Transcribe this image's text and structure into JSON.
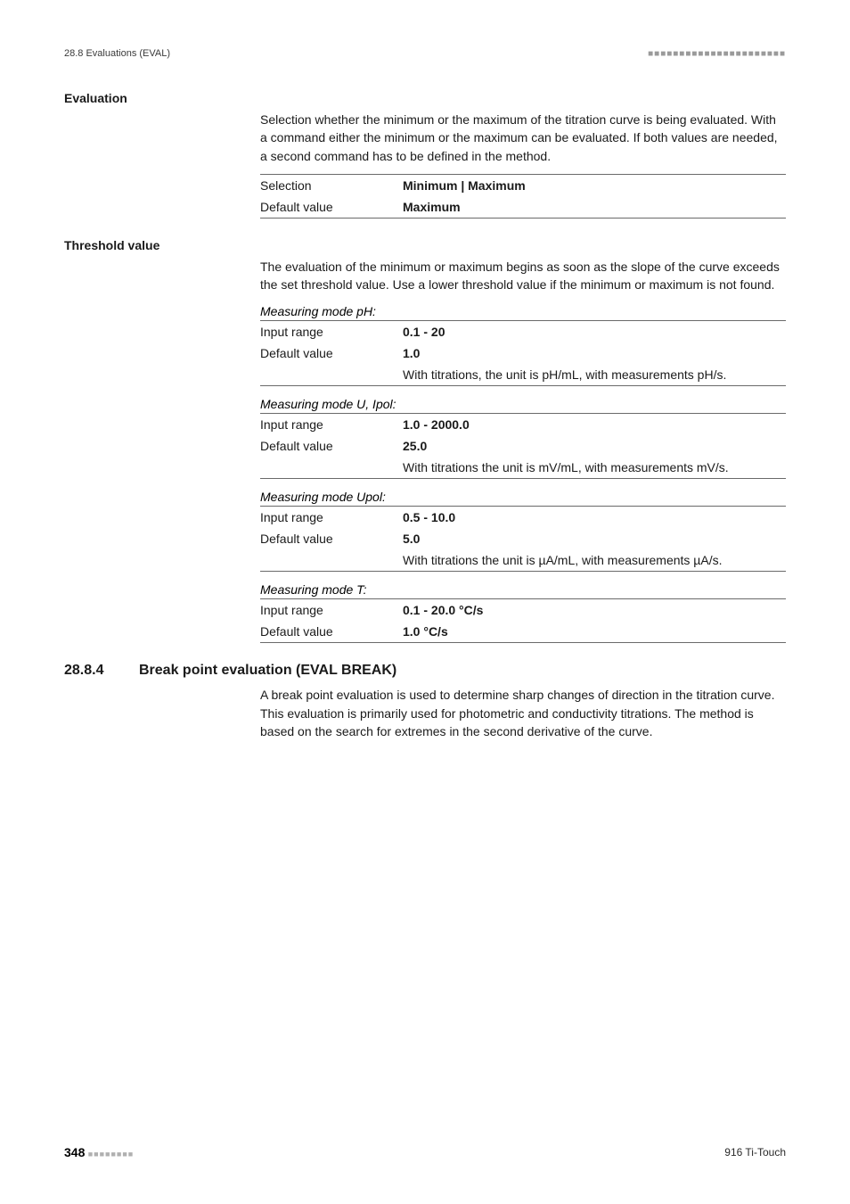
{
  "header": {
    "left": "28.8 Evaluations (EVAL)",
    "dots": "■■■■■■■■■■■■■■■■■■■■■■"
  },
  "evaluation": {
    "term": "Evaluation",
    "para": "Selection whether the minimum or the maximum of the titration curve is being evaluated. With a command either the minimum or the maximum can be evaluated. If both values are needed, a second command has to be defined in the method.",
    "rows": {
      "selection": {
        "key": "Selection",
        "val": "Minimum | Maximum"
      },
      "default": {
        "key": "Default value",
        "val": "Maximum"
      }
    }
  },
  "threshold": {
    "term": "Threshold value",
    "para": "The evaluation of the minimum or maximum begins as soon as the slope of the curve exceeds the set threshold value. Use a lower threshold value if the minimum or maximum is not found.",
    "mode_ph": {
      "label": "Measuring mode pH:",
      "input": {
        "key": "Input range",
        "val": "0.1 - 20"
      },
      "default": {
        "key": "Default value",
        "val": "1.0"
      },
      "note": "With titrations, the unit is pH/mL, with measurements pH/s."
    },
    "mode_u_ipol": {
      "label": "Measuring mode U, Ipol:",
      "input": {
        "key": "Input range",
        "val": "1.0 - 2000.0"
      },
      "default": {
        "key": "Default value",
        "val": "25.0"
      },
      "note": "With titrations the unit is mV/mL, with measurements mV/s."
    },
    "mode_upol": {
      "label": "Measuring mode Upol:",
      "input": {
        "key": "Input range",
        "val": "0.5 - 10.0"
      },
      "default": {
        "key": "Default value",
        "val": "5.0"
      },
      "note": "With titrations the unit is µA/mL, with measurements µA/s."
    },
    "mode_t": {
      "label": "Measuring mode T:",
      "input": {
        "key": "Input range",
        "val": "0.1 - 20.0 °C/s"
      },
      "default": {
        "key": "Default value",
        "val": "1.0 °C/s"
      }
    }
  },
  "section": {
    "num": "28.8.4",
    "title": "Break point evaluation (EVAL BREAK)",
    "para": "A break point evaluation is used to determine sharp changes of direction in the titration curve. This evaluation is primarily used for photometric and conductivity titrations. The method is based on the search for extremes in the second derivative of the curve."
  },
  "footer": {
    "page": "348",
    "dots": "■■■■■■■■",
    "right": "916 Ti-Touch"
  }
}
